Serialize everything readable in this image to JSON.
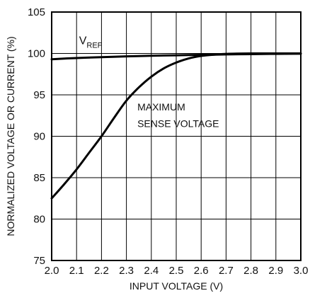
{
  "chart_data": {
    "type": "line",
    "xlabel": "INPUT VOLTAGE (V)",
    "ylabel": "NORMALIZED VOLTAGE OR CURRENT (%)",
    "xlim": [
      2.0,
      3.0
    ],
    "ylim": [
      75,
      105
    ],
    "x_ticks": [
      "2.0",
      "2.1",
      "2.2",
      "2.3",
      "2.4",
      "2.5",
      "2.6",
      "2.7",
      "2.8",
      "2.9",
      "3.0"
    ],
    "y_ticks": [
      "75",
      "80",
      "85",
      "90",
      "95",
      "100",
      "105"
    ],
    "grid": true,
    "series": [
      {
        "name": "VREF",
        "name_main": "V",
        "name_sub": "REF",
        "x": [
          2.0,
          2.1,
          2.2,
          2.3,
          2.4,
          2.5,
          2.6,
          2.7,
          2.8,
          2.9,
          3.0
        ],
        "y": [
          99.3,
          99.45,
          99.55,
          99.65,
          99.72,
          99.78,
          99.83,
          99.88,
          99.92,
          99.95,
          99.97
        ]
      },
      {
        "name": "MAXIMUM SENSE VOLTAGE",
        "name_lines": [
          "MAXIMUM",
          "SENSE VOLTAGE"
        ],
        "x": [
          2.0,
          2.05,
          2.1,
          2.15,
          2.2,
          2.25,
          2.3,
          2.35,
          2.4,
          2.45,
          2.5,
          2.55,
          2.6,
          2.65,
          2.7,
          2.8,
          2.9,
          3.0
        ],
        "y": [
          82.5,
          84.2,
          86.0,
          88.0,
          90.0,
          92.2,
          94.3,
          95.9,
          97.2,
          98.2,
          98.9,
          99.4,
          99.7,
          99.85,
          99.95,
          100.0,
          100.0,
          100.0
        ]
      }
    ]
  }
}
